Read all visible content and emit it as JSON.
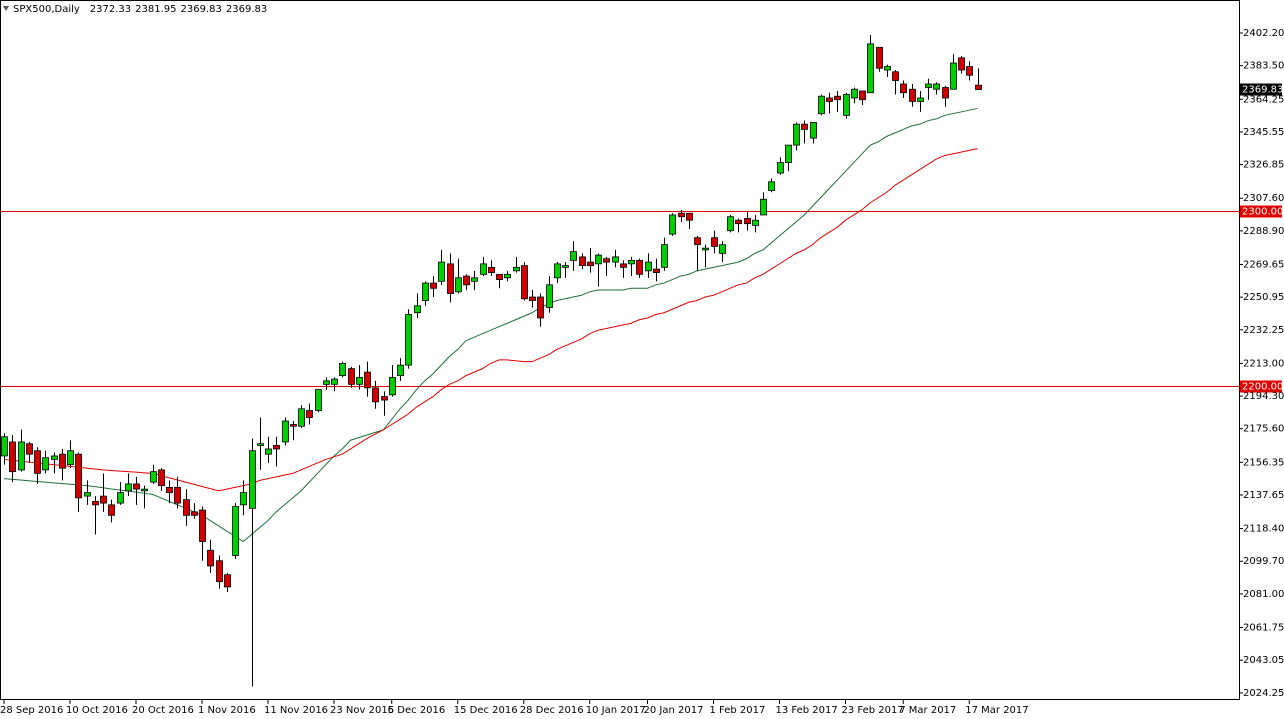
{
  "chart_data": {
    "type": "candlestick",
    "title": "SPX500,Daily",
    "ylim": [
      2020.24,
      2421.1
    ],
    "yticks": [
      {
        "value": 2402.2,
        "label": "2402.20"
      },
      {
        "value": 2383.5,
        "label": "2383.50"
      },
      {
        "value": 2364.25,
        "label": "2364.25"
      },
      {
        "value": 2345.55,
        "label": "2345.55"
      },
      {
        "value": 2326.85,
        "label": "2326.85"
      },
      {
        "value": 2307.6,
        "label": "2307.60"
      },
      {
        "value": 2288.9,
        "label": "2288.90"
      },
      {
        "value": 2269.65,
        "label": "2269.65"
      },
      {
        "value": 2250.95,
        "label": "2250.95"
      },
      {
        "value": 2232.25,
        "label": "2232.25"
      },
      {
        "value": 2213,
        "label": "2213.00"
      },
      {
        "value": 2194.3,
        "label": "2194.30"
      },
      {
        "value": 2175.6,
        "label": "2175.60"
      },
      {
        "value": 2156.35,
        "label": "2156.35"
      },
      {
        "value": 2137.65,
        "label": "2137.65"
      },
      {
        "value": 2118.4,
        "label": "2118.40"
      },
      {
        "value": 2099.7,
        "label": "2099.70"
      },
      {
        "value": 2081,
        "label": "2081.00"
      },
      {
        "value": 2061.75,
        "label": "2061.75"
      },
      {
        "value": 2043.05,
        "label": "2043.05"
      },
      {
        "value": 2024.25,
        "label": "2024.25"
      }
    ],
    "levels": [
      {
        "value": 2300,
        "label": "2300.00",
        "color": "#e00000"
      },
      {
        "value": 2200,
        "label": "2200.00",
        "color": "#e00000"
      }
    ],
    "up_color": "#00d000",
    "down_color": "#d00000",
    "categories": [
      "28 Sep 2016",
      null,
      null,
      null,
      null,
      null,
      null,
      null,
      "10 Oct 2016",
      null,
      null,
      null,
      null,
      null,
      null,
      null,
      "20 Oct 2016",
      null,
      null,
      null,
      null,
      null,
      null,
      null,
      "1 Nov 2016",
      null,
      null,
      null,
      null,
      null,
      null,
      null,
      "11 Nov 2016",
      null,
      null,
      null,
      null,
      null,
      null,
      null,
      "23 Nov 2016",
      null,
      null,
      null,
      null,
      null,
      null,
      "5 Dec 2016",
      null,
      null,
      null,
      null,
      null,
      null,
      null,
      "15 Dec 2016",
      null,
      null,
      null,
      null,
      null,
      null,
      null,
      "28 Dec 2016",
      null,
      null,
      null,
      null,
      null,
      null,
      null,
      "10 Jan 2017",
      null,
      null,
      null,
      null,
      null,
      null,
      "20 Jan 2017",
      null,
      null,
      null,
      null,
      null,
      null,
      null,
      "1 Feb 2017",
      null,
      null,
      null,
      null,
      null,
      null,
      null,
      "13 Feb 2017",
      null,
      null,
      null,
      null,
      null,
      null,
      null,
      "23 Feb 2017",
      null,
      null,
      null,
      null,
      null,
      null,
      "7 Mar 2017",
      null,
      null,
      null,
      null,
      null,
      null,
      null,
      "17 Mar 2017",
      null
    ],
    "candles": [
      [
        2160,
        2173,
        2155,
        2171
      ],
      [
        2168,
        2172,
        2145,
        2151
      ],
      [
        2152,
        2175,
        2151,
        2168
      ],
      [
        2167,
        2168,
        2156,
        2161
      ],
      [
        2163,
        2165,
        2144,
        2150
      ],
      [
        2152,
        2163,
        2150,
        2159
      ],
      [
        2158,
        2162,
        2150,
        2160
      ],
      [
        2161,
        2164,
        2146,
        2153
      ],
      [
        2155,
        2169,
        2153,
        2163
      ],
      [
        2161,
        2162,
        2128,
        2136
      ],
      [
        2137,
        2146,
        2132,
        2139
      ],
      [
        2134,
        2137,
        2115,
        2132
      ],
      [
        2137,
        2150,
        2128,
        2133
      ],
      [
        2132,
        2135,
        2122,
        2126
      ],
      [
        2133,
        2145,
        2132,
        2139
      ],
      [
        2140,
        2150,
        2137,
        2144
      ],
      [
        2144,
        2148,
        2132,
        2141
      ],
      [
        2140,
        2143,
        2130,
        2141
      ],
      [
        2145,
        2155,
        2144,
        2151
      ],
      [
        2152,
        2153,
        2140,
        2143
      ],
      [
        2142,
        2146,
        2133,
        2139
      ],
      [
        2142,
        2148,
        2130,
        2133
      ],
      [
        2135,
        2141,
        2120,
        2126
      ],
      [
        2128,
        2133,
        2124,
        2126
      ],
      [
        2129,
        2131,
        2100,
        2111
      ],
      [
        2106,
        2112,
        2093,
        2097
      ],
      [
        2100,
        2103,
        2084,
        2088
      ],
      [
        2092,
        2093,
        2082,
        2085
      ],
      [
        2103,
        2133,
        2101,
        2131
      ],
      [
        2132,
        2146,
        2126,
        2139
      ],
      [
        2130,
        2170,
        2028,
        2163
      ],
      [
        2166,
        2182,
        2152,
        2167
      ],
      [
        2161,
        2171,
        2156,
        2164
      ],
      [
        2166,
        2171,
        2154,
        2164
      ],
      [
        2168,
        2182,
        2166,
        2180
      ],
      [
        2178,
        2180,
        2169,
        2177
      ],
      [
        2177,
        2189,
        2176,
        2187
      ],
      [
        2186,
        2190,
        2178,
        2182
      ],
      [
        2186,
        2198,
        2185,
        2198
      ],
      [
        2201,
        2205,
        2198,
        2203
      ],
      [
        2201,
        2205,
        2197,
        2204
      ],
      [
        2206,
        2214,
        2205,
        2213
      ],
      [
        2210,
        2211,
        2199,
        2201
      ],
      [
        2201,
        2212,
        2198,
        2205
      ],
      [
        2208,
        2214,
        2194,
        2199
      ],
      [
        2199,
        2203,
        2187,
        2191
      ],
      [
        2194,
        2197,
        2183,
        2192
      ],
      [
        2195,
        2212,
        2194,
        2205
      ],
      [
        2206,
        2216,
        2203,
        2212
      ],
      [
        2212,
        2244,
        2210,
        2241
      ],
      [
        2242,
        2253,
        2239,
        2246
      ],
      [
        2249,
        2260,
        2246,
        2259
      ],
      [
        2259,
        2263,
        2251,
        2256
      ],
      [
        2260,
        2278,
        2258,
        2271
      ],
      [
        2270,
        2276,
        2248,
        2253
      ],
      [
        2254,
        2273,
        2253,
        2262
      ],
      [
        2263,
        2264,
        2255,
        2258
      ],
      [
        2260,
        2266,
        2255,
        2262
      ],
      [
        2264,
        2274,
        2263,
        2270
      ],
      [
        2268,
        2272,
        2263,
        2265
      ],
      [
        2264,
        2264,
        2256,
        2261
      ],
      [
        2262,
        2266,
        2260,
        2264
      ],
      [
        2266,
        2274,
        2265,
        2268
      ],
      [
        2269,
        2271,
        2249,
        2250
      ],
      [
        2251,
        2255,
        2245,
        2249
      ],
      [
        2251,
        2253,
        2234,
        2239
      ],
      [
        2245,
        2263,
        2242,
        2258
      ],
      [
        2262,
        2271,
        2259,
        2270
      ],
      [
        2268,
        2271,
        2262,
        2269
      ],
      [
        2272,
        2283,
        2266,
        2277
      ],
      [
        2274,
        2276,
        2267,
        2269
      ],
      [
        2271,
        2279,
        2265,
        2269
      ],
      [
        2270,
        2276,
        2257,
        2275
      ],
      [
        2273,
        2274,
        2263,
        2271
      ],
      [
        2271,
        2278,
        2268,
        2274
      ],
      [
        2270,
        2272,
        2262,
        2268
      ],
      [
        2270,
        2274,
        2263,
        2272
      ],
      [
        2272,
        2273,
        2262,
        2264
      ],
      [
        2266,
        2276,
        2262,
        2271
      ],
      [
        2267,
        2273,
        2260,
        2265
      ],
      [
        2268,
        2285,
        2266,
        2281
      ],
      [
        2287,
        2299,
        2286,
        2298
      ],
      [
        2299,
        2301,
        2294,
        2297
      ],
      [
        2299,
        2299,
        2290,
        2295
      ],
      [
        2285,
        2286,
        2266,
        2281
      ],
      [
        2278,
        2281,
        2268,
        2279
      ],
      [
        2285,
        2289,
        2276,
        2280
      ],
      [
        2276,
        2283,
        2271,
        2281
      ],
      [
        2289,
        2298,
        2288,
        2297
      ],
      [
        2295,
        2296,
        2288,
        2293
      ],
      [
        2296,
        2300,
        2289,
        2293
      ],
      [
        2292,
        2298,
        2288,
        2295
      ],
      [
        2298,
        2311,
        2298,
        2307
      ],
      [
        2312,
        2319,
        2311,
        2317
      ],
      [
        2322,
        2331,
        2321,
        2328
      ],
      [
        2328,
        2338,
        2323,
        2338
      ],
      [
        2338,
        2351,
        2335,
        2350
      ],
      [
        2350,
        2352,
        2339,
        2347
      ],
      [
        2342,
        2351,
        2339,
        2351
      ],
      [
        2356,
        2367,
        2355,
        2366
      ],
      [
        2365,
        2368,
        2356,
        2363
      ],
      [
        2366,
        2369,
        2357,
        2364
      ],
      [
        2355,
        2368,
        2353,
        2367
      ],
      [
        2365,
        2371,
        2362,
        2370
      ],
      [
        2369,
        2369,
        2361,
        2364
      ],
      [
        2368,
        2401,
        2368,
        2396
      ],
      [
        2394,
        2394,
        2380,
        2382
      ],
      [
        2381,
        2384,
        2377,
        2383
      ],
      [
        2380,
        2381,
        2367,
        2375
      ],
      [
        2373,
        2375,
        2365,
        2368
      ],
      [
        2370,
        2373,
        2360,
        2363
      ],
      [
        2363,
        2369,
        2357,
        2365
      ],
      [
        2371,
        2376,
        2364,
        2373
      ],
      [
        2370,
        2374,
        2367,
        2373
      ],
      [
        2371,
        2372,
        2360,
        2365
      ],
      [
        2370,
        2390,
        2370,
        2385
      ],
      [
        2388,
        2389,
        2379,
        2381
      ],
      [
        2383,
        2386,
        2375,
        2378
      ],
      [
        2372.33,
        2381.95,
        2369.83,
        2369.83
      ]
    ],
    "lines": [
      {
        "color": "#1e6e3a",
        "values": [
          2147,
          2146.6,
          2146.2,
          2145.8,
          2145.4,
          2145,
          2144.6,
          2144.2,
          2143.8,
          2143.4,
          2143,
          2142.4,
          2141.8,
          2141.1,
          2140.5,
          2139.9,
          2139.3,
          2138.6,
          2138,
          2136,
          2134,
          2132,
          2130,
          2128,
          2126,
          2123,
          2120,
          2117,
          2114,
          2111,
          2115,
          2119,
          2123,
          2128,
          2132,
          2136,
          2140,
          2145,
          2150,
          2155,
          2160,
          2164,
          2169,
          2170.5,
          2172,
          2173.5,
          2175,
          2181,
          2187,
          2192,
          2198,
          2203,
          2207,
          2212,
          2217,
          2221,
          2226,
          2228,
          2230,
          2232,
          2234,
          2236,
          2238,
          2240,
          2242,
          2245,
          2247,
          2249,
          2250,
          2251,
          2252,
          2254,
          2255,
          2255,
          2255,
          2255,
          2256,
          2256,
          2256,
          2258,
          2259,
          2261,
          2263,
          2264,
          2266,
          2267,
          2268,
          2269,
          2270,
          2271,
          2273,
          2276,
          2278,
          2282,
          2286,
          2290,
          2294,
          2298,
          2303,
          2308,
          2313,
          2318,
          2323,
          2328,
          2333,
          2338,
          2340,
          2343,
          2345,
          2347,
          2349,
          2350,
          2352,
          2353,
          2355,
          2356,
          2357,
          2358,
          2359
        ]
      },
      {
        "color": "#e00000",
        "values": [
          2158,
          2157.5,
          2157,
          2156.5,
          2156,
          2155.5,
          2155,
          2154.5,
          2154,
          2153.5,
          2153,
          2152.5,
          2152,
          2151.7,
          2151.3,
          2151,
          2150.7,
          2150.3,
          2150,
          2148.8,
          2147.5,
          2146.3,
          2145,
          2143.8,
          2142.5,
          2141.3,
          2140,
          2141,
          2142,
          2143,
          2144,
          2146,
          2147,
          2148,
          2149,
          2150,
          2152,
          2154,
          2156,
          2158,
          2159.5,
          2161,
          2164,
          2167,
          2170,
          2172.5,
          2175,
          2178,
          2181,
          2184,
          2188,
          2191,
          2194,
          2198,
          2201,
          2203,
          2206,
          2208,
          2210,
          2213,
          2215,
          2215,
          2214.5,
          2214,
          2214,
          2216,
          2218,
          2221,
          2223,
          2225,
          2227,
          2230,
          2232,
          2233,
          2234,
          2235,
          2236,
          2238,
          2239,
          2241,
          2242,
          2244,
          2246,
          2248,
          2249,
          2251,
          2252,
          2254,
          2256,
          2258,
          2259,
          2262,
          2264,
          2267,
          2270,
          2273,
          2276,
          2278,
          2281,
          2285,
          2288,
          2291,
          2295,
          2298,
          2301,
          2305,
          2308,
          2311,
          2315,
          2318,
          2321,
          2324,
          2327,
          2330,
          2332,
          2333,
          2334,
          2335,
          2336
        ]
      }
    ]
  }
}
